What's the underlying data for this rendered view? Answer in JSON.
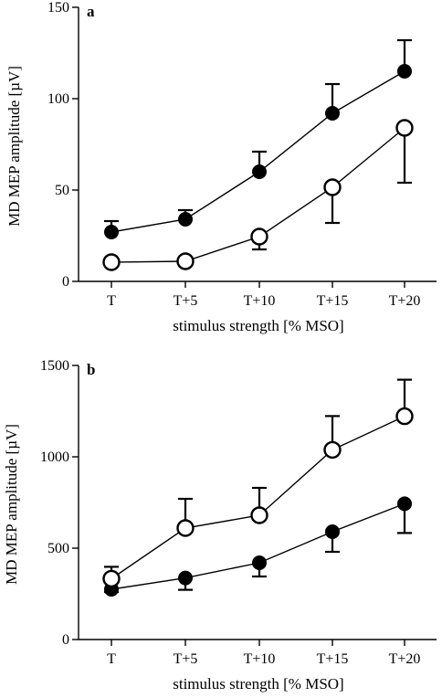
{
  "chart_data": [
    {
      "type": "line",
      "panel": "a",
      "categories": [
        "T",
        "T+5",
        "T+10",
        "T+15",
        "T+20"
      ],
      "xlabel": "stimulus strength [% MSO]",
      "ylabel": "MD MEP amplitude [µV]",
      "ylim": [
        0,
        150
      ],
      "yticks": [
        0,
        50,
        100,
        150
      ],
      "grid": false,
      "series": [
        {
          "marker": "filled-circle",
          "values": [
            27,
            34,
            60,
            92,
            115
          ],
          "error_up": [
            6,
            5,
            11,
            16,
            17
          ],
          "error_down": [
            0,
            0,
            0,
            0,
            0
          ]
        },
        {
          "marker": "open-circle",
          "values": [
            10.5,
            11,
            24.5,
            51.5,
            84
          ],
          "error_up": [
            0,
            0,
            0,
            0,
            0
          ],
          "error_down": [
            0,
            0,
            7,
            19.5,
            30
          ]
        }
      ]
    },
    {
      "type": "line",
      "panel": "b",
      "categories": [
        "T",
        "T+5",
        "T+10",
        "T+15",
        "T+20"
      ],
      "xlabel": "stimulus strength [% MSO]",
      "ylabel": "MD MEP amplitude [µV]",
      "ylim": [
        0,
        1500
      ],
      "yticks": [
        0,
        500,
        1000,
        1500
      ],
      "grid": false,
      "series": [
        {
          "marker": "filled-circle",
          "values": [
            275,
            337,
            420,
            590,
            743
          ],
          "error_up": [
            0,
            0,
            0,
            0,
            0
          ],
          "error_down": [
            15,
            65,
            75,
            110,
            160
          ]
        },
        {
          "marker": "open-circle",
          "values": [
            333,
            610,
            680,
            1038,
            1222
          ],
          "error_up": [
            65,
            160,
            150,
            185,
            200
          ],
          "error_down": [
            0,
            0,
            0,
            0,
            0
          ]
        }
      ]
    }
  ]
}
